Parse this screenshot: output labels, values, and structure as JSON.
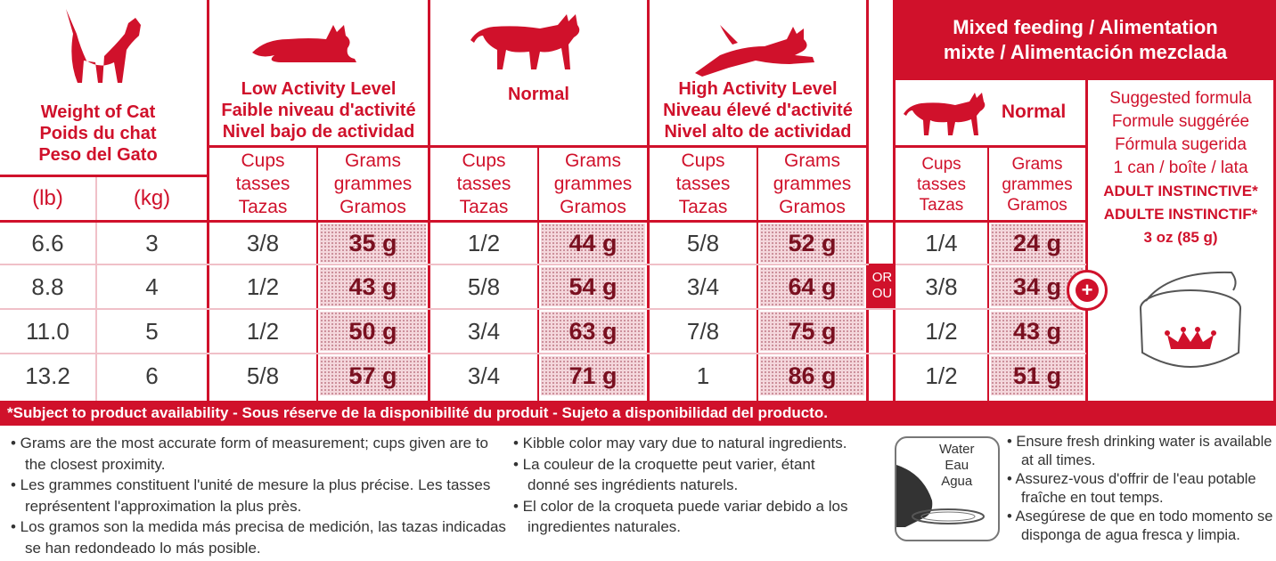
{
  "colors": {
    "brand_red": "#d0112b",
    "text_gray": "#3a3a3a"
  },
  "weight": {
    "title": [
      "Weight of Cat",
      "Poids du chat",
      "Peso del Gato"
    ],
    "lb_label": "(lb)",
    "kg_label": "(kg)"
  },
  "low": {
    "title": [
      "Low Activity Level",
      "Faible niveau d'activité",
      "Nivel bajo de actividad"
    ]
  },
  "normal": {
    "title": "Normal"
  },
  "high": {
    "title": [
      "High Activity Level",
      "Niveau élevé d'activité",
      "Nivel alto de actividad"
    ]
  },
  "mixed": {
    "title": [
      "Mixed feeding / Alimentation",
      "mixte / Alimentación mezclada"
    ],
    "normal": "Normal"
  },
  "cups_label": [
    "Cups",
    "tasses",
    "Tazas"
  ],
  "grams_label": [
    "Grams",
    "grammes",
    "Gramos"
  ],
  "rows": [
    {
      "lb": "6.6",
      "kg": "3",
      "low_cups": "3/8",
      "low_g": "35 g",
      "norm_cups": "1/2",
      "norm_g": "44 g",
      "high_cups": "5/8",
      "high_g": "52 g",
      "mix_cups": "1/4",
      "mix_g": "24 g"
    },
    {
      "lb": "8.8",
      "kg": "4",
      "low_cups": "1/2",
      "low_g": "43 g",
      "norm_cups": "5/8",
      "norm_g": "54 g",
      "high_cups": "3/4",
      "high_g": "64 g",
      "mix_cups": "3/8",
      "mix_g": "34 g"
    },
    {
      "lb": "11.0",
      "kg": "5",
      "low_cups": "1/2",
      "low_g": "50 g",
      "norm_cups": "3/4",
      "norm_g": "63 g",
      "high_cups": "7/8",
      "high_g": "75 g",
      "mix_cups": "1/2",
      "mix_g": "43 g"
    },
    {
      "lb": "13.2",
      "kg": "6",
      "low_cups": "5/8",
      "low_g": "57 g",
      "norm_cups": "3/4",
      "norm_g": "71 g",
      "high_cups": "1",
      "high_g": "86 g",
      "mix_cups": "1/2",
      "mix_g": "51 g"
    }
  ],
  "or_label": [
    "OR",
    "OU"
  ],
  "plus_label": "+",
  "suggested": {
    "lines": [
      "Suggested formula",
      "Formule suggérée",
      "Fórmula sugerida",
      "1 can / boîte / lata"
    ],
    "bold_lines": [
      "ADULT INSTINCTIVE*",
      "ADULTE INSTINCTIF*"
    ],
    "size": "3 oz (85 g)"
  },
  "banner": "*Subject to product availability - Sous réserve de la disponibilité du produit - Sujeto a disponibilidad del producto.",
  "notes_col1": [
    "• Grams are the most accurate form of measurement; cups given are to the closest proximity.",
    "• Les grammes constituent l'unité de mesure la plus précise. Les tasses représentent l'approximation la plus près.",
    "• Los gramos son la medida más precisa de medición, las tazas indicadas se han redondeado lo más posible."
  ],
  "notes_col2": [
    "• Kibble color may vary due to natural ingredients.",
    "• La couleur de la croquette peut varier, étant donné ses ingrédients naturels.",
    "• El color de la croqueta puede variar debido a los ingredientes naturales."
  ],
  "water": {
    "label": [
      "Water",
      "Eau",
      "Agua"
    ]
  },
  "notes_col3": [
    "• Ensure fresh drinking water is available at all times.",
    "• Assurez-vous d'offrir de l'eau potable fraîche en tout temps.",
    "• Asegúrese de que en todo momento se disponga de agua fresca y limpia."
  ]
}
